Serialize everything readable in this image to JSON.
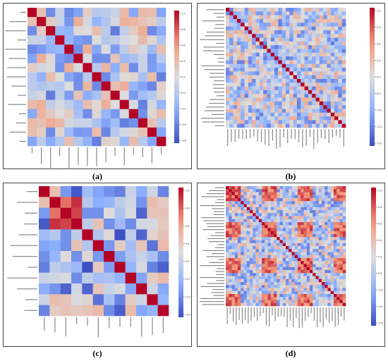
{
  "panels": [
    {
      "id": "a",
      "caption": "(a)",
      "n": 15,
      "diag": "#b40426",
      "cbar_ticks": [
        "1.0",
        "0.8",
        "0.6",
        "0.4",
        "0.2",
        "0.0",
        "-0.2",
        "-0.4",
        "-0.6"
      ]
    },
    {
      "id": "b",
      "caption": "(b)",
      "n": 32,
      "diag": "#b40426",
      "cbar_ticks": [
        "1.0",
        "0.8",
        "0.6",
        "0.4",
        "0.2",
        "0.0",
        "-0.2",
        "-0.4",
        "-0.6"
      ]
    },
    {
      "id": "c",
      "caption": "(c)",
      "n": 12,
      "diag": "#b40426",
      "cbar_ticks": [
        "1.0",
        "0.8",
        "0.6",
        "0.4",
        "0.2",
        "0.0",
        "-0.2",
        "-0.4"
      ]
    },
    {
      "id": "d",
      "caption": "(d)",
      "n": 40,
      "diag": "#b40426",
      "cbar_ticks": [
        "1.0",
        "0.8",
        "0.6",
        "0.4",
        "0.2",
        "0.0",
        "-0.2",
        "-0.4",
        "-0.6"
      ]
    }
  ],
  "chart_data": [
    {
      "type": "heatmap",
      "panel": "a",
      "matrix_size": 15,
      "colormap": "coolwarm",
      "vmin": -0.6,
      "vmax": 1.0,
      "diagonal_value": 1.0
    },
    {
      "type": "heatmap",
      "panel": "b",
      "matrix_size": 32,
      "colormap": "coolwarm",
      "vmin": -0.6,
      "vmax": 1.0,
      "diagonal_value": 1.0
    },
    {
      "type": "heatmap",
      "panel": "c",
      "matrix_size": 12,
      "colormap": "coolwarm",
      "vmin": -0.4,
      "vmax": 1.0,
      "diagonal_value": 1.0
    },
    {
      "type": "heatmap",
      "panel": "d",
      "matrix_size": 40,
      "colormap": "coolwarm",
      "vmin": -0.6,
      "vmax": 1.0,
      "diagonal_value": 1.0
    }
  ]
}
